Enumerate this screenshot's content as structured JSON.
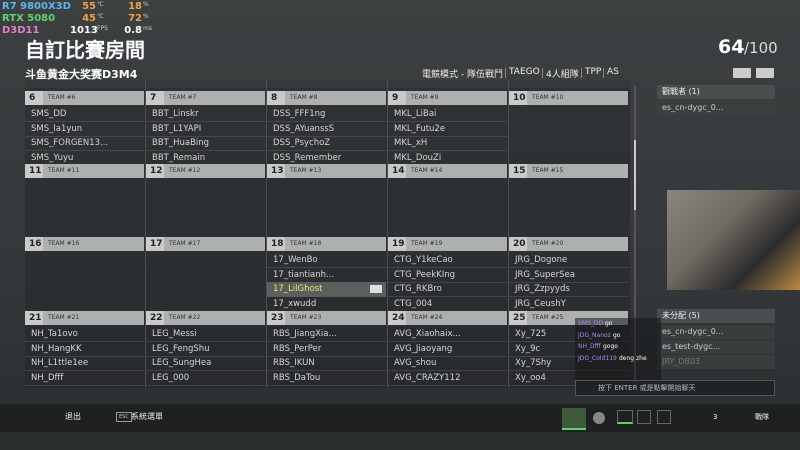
{
  "overlay": [
    {
      "label": "R7 9800X3D",
      "v1": "55",
      "u1": "℃",
      "v2": "18",
      "u2": "%"
    },
    {
      "label": "RTX 5080",
      "v1": "45",
      "u1": "℃",
      "v2": "72",
      "u2": "%"
    },
    {
      "label": "D3D11",
      "v1": "1013",
      "u1": "FPS",
      "v2": "0.8",
      "u2": "ms"
    }
  ],
  "header": {
    "title": "自訂比賽房間",
    "count": "64",
    "total": "/100",
    "subtitle": "斗鱼黄金大奖赛D3M4",
    "modes": [
      "電競模式 - 隊伍戰鬥",
      "TAEGO",
      "4人組隊",
      "TPP",
      "AS"
    ]
  },
  "teams": [
    {
      "number": 6,
      "name": "TEAM #6",
      "players": [
        "SMS_DD",
        "SMS_la1yun",
        "SMS_FORGEN13...",
        "SMS_Yuyu"
      ]
    },
    {
      "number": 7,
      "name": "TEAM #7",
      "players": [
        "BBT_Linskr",
        "BBT_L1YAPI",
        "BBT_HuaBing",
        "BBT_Remain"
      ]
    },
    {
      "number": 8,
      "name": "TEAM #8",
      "players": [
        "DSS_FFF1ng",
        "DSS_AYuanssS",
        "DSS_PsychoZ",
        "DSS_Remember"
      ]
    },
    {
      "number": 9,
      "name": "TEAM #9",
      "players": [
        "MKL_LiBai",
        "MKL_Futu2e",
        "MKL_xH",
        "MKL_DouZi"
      ]
    },
    {
      "number": 10,
      "name": "TEAM #10",
      "players": []
    },
    {
      "number": 11,
      "name": "TEAM #11",
      "players": []
    },
    {
      "number": 12,
      "name": "TEAM #12",
      "players": []
    },
    {
      "number": 13,
      "name": "TEAM #13",
      "players": []
    },
    {
      "number": 14,
      "name": "TEAM #14",
      "players": []
    },
    {
      "number": 15,
      "name": "TEAM #15",
      "players": []
    },
    {
      "number": 16,
      "name": "TEAM #16",
      "players": []
    },
    {
      "number": 17,
      "name": "TEAM #17",
      "players": []
    },
    {
      "number": 18,
      "name": "TEAM #18",
      "players": [
        "17_WenBo",
        "17_tiantianh...",
        "17_LilGhost",
        "17_xwudd"
      ],
      "highlighted_index": 2
    },
    {
      "number": 19,
      "name": "TEAM #19",
      "players": [
        "CTG_Y1keCao",
        "CTG_PeekKIng",
        "CTG_RKBro",
        "CTG_004"
      ]
    },
    {
      "number": 20,
      "name": "TEAM #20",
      "players": [
        "JRG_Dogone",
        "JRG_SuperSea",
        "JRG_Zzpyyds",
        "JRG_CeushY"
      ]
    },
    {
      "number": 21,
      "name": "TEAM #21",
      "players": [
        "NH_Ta1ovo",
        "NH_HangKK",
        "NH_L1ttle1ee",
        "NH_Dfff"
      ]
    },
    {
      "number": 22,
      "name": "TEAM #22",
      "players": [
        "LEG_Messi",
        "LEG_FengShu",
        "LEG_SungHea",
        "LEG_000"
      ]
    },
    {
      "number": 23,
      "name": "TEAM #23",
      "players": [
        "RBS_JiangXia...",
        "RBS_PerPer",
        "RBS_IKUN",
        "RBS_DaTou"
      ]
    },
    {
      "number": 24,
      "name": "TEAM #24",
      "players": [
        "AVG_Xiaohaix...",
        "AVG_Jiaoyang",
        "AVG_shou",
        "AVG_CRAZY112"
      ]
    },
    {
      "number": 25,
      "name": "TEAM #25",
      "players": [
        "Xy_725",
        "Xy_9c",
        "Xy_7Shy",
        "Xy_oo4"
      ]
    }
  ],
  "spectators": {
    "title": "觀戰者 (1)",
    "items": [
      "es_cn-dygc_0..."
    ]
  },
  "unassigned": {
    "title": "未分配 (5)",
    "items": [
      "es_cn-dygc_0...",
      "es_test-dygc...",
      "JRY_DB03"
    ]
  },
  "chat": {
    "messages": [
      {
        "user": "SMS_DD",
        "text": "go"
      },
      {
        "user": "JDG_Nanoz",
        "text": "go"
      },
      {
        "user": "NH_Dfff",
        "text": "gogo"
      },
      {
        "user": "JDG_Cold119",
        "text": "deng zhe"
      }
    ],
    "placeholder": "按下 ENTER 或是點擊開始聊天"
  },
  "footer": {
    "exit": "退出",
    "esc": "ESC",
    "menu": "系統選單",
    "squad_count": "3",
    "watch": "戰隊"
  }
}
